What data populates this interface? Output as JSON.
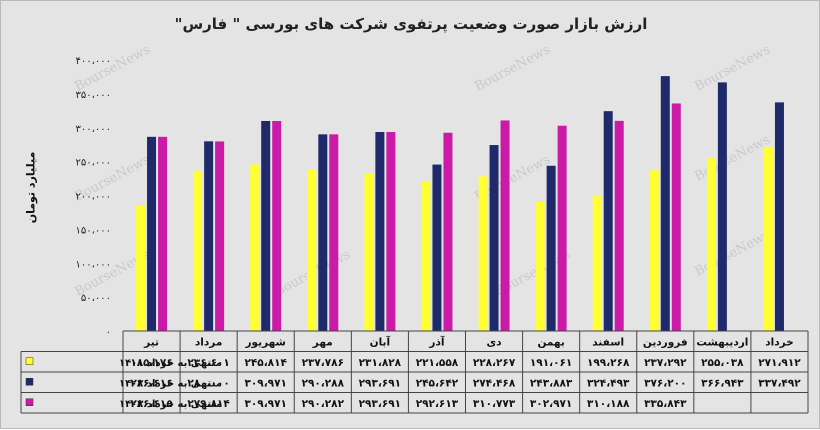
{
  "chart_data": {
    "type": "bar",
    "title": "ارزش بازار صورت وضعیت پرتفوی شرکت های بورسی \" فارس\"",
    "ylabel": "میلیارد تومان",
    "watermark": "BourseNews",
    "ylim": [
      0,
      400000
    ],
    "yticks": [
      "۴۰۰،۰۰۰",
      "۳۵۰،۰۰۰",
      "۳۰۰،۰۰۰",
      "۲۵۰،۰۰۰",
      "۲۰۰،۰۰۰",
      "۱۵۰،۰۰۰",
      "۱۰۰،۰۰۰",
      "۵۰،۰۰۰",
      "۰"
    ],
    "categories": [
      "تیر",
      "مرداد",
      "شهریور",
      "مهر",
      "آبان",
      "آذر",
      "دی",
      "بهمن",
      "اسفند",
      "فروردین",
      "اردیبهشت",
      "خرداد"
    ],
    "series": [
      {
        "name": "منتهی به خرداد ۱۴۰۱",
        "color": "#ffff33",
        "values": [
          185176,
          236601,
          245814,
          237786,
          231828,
          221558,
          228267,
          191061,
          199268,
          237292,
          255038,
          271912
        ],
        "labels": [
          "۱۸۵،۱۷۶",
          "۲۳۶،۶۰۱",
          "۲۴۵،۸۱۴",
          "۲۳۷،۷۸۶",
          "۲۳۱،۸۲۸",
          "۲۲۱،۵۵۸",
          "۲۲۸،۲۶۷",
          "۱۹۱،۰۶۱",
          "۱۹۹،۲۶۸",
          "۲۳۷،۲۹۲",
          "۲۵۵،۰۳۸",
          "۲۷۱،۹۱۲"
        ]
      },
      {
        "name": "منتهی به خرداد ۱۴۰۲",
        "color": "#1f2a6b",
        "values": [
          286616,
          280000,
          309971,
          290288,
          293691,
          245642,
          274468,
          243883,
          324493,
          376200,
          366943,
          337492
        ],
        "labels": [
          "۲۸۶،۶۱۶",
          "۲۸۰،۰۰۰",
          "۳۰۹،۹۷۱",
          "۲۹۰،۲۸۸",
          "۲۹۳،۶۹۱",
          "۲۴۵،۶۴۲",
          "۲۷۴،۴۶۸",
          "۲۴۳،۸۸۳",
          "۳۲۴،۴۹۳",
          "۳۷۶،۲۰۰",
          "۳۶۶،۹۴۳",
          "۳۳۷،۴۹۲"
        ]
      },
      {
        "name": "منتهی به خرداد ۱۴۰۳",
        "color": "#cc1aa8",
        "values": [
          286615,
          279814,
          309971,
          290282,
          293691,
          292613,
          310773,
          302971,
          310188,
          335843,
          null,
          null
        ],
        "labels": [
          "۲۸۶،۶۱۵",
          "۲۷۹،۸۱۴",
          "۳۰۹،۹۷۱",
          "۲۹۰،۲۸۲",
          "۲۹۳،۶۹۱",
          "۲۹۲،۶۱۳",
          "۳۱۰،۷۷۳",
          "۳۰۲،۹۷۱",
          "۳۱۰،۱۸۸",
          "۳۳۵،۸۴۳",
          "",
          ""
        ]
      }
    ],
    "grid": false,
    "legend": "table-below"
  }
}
